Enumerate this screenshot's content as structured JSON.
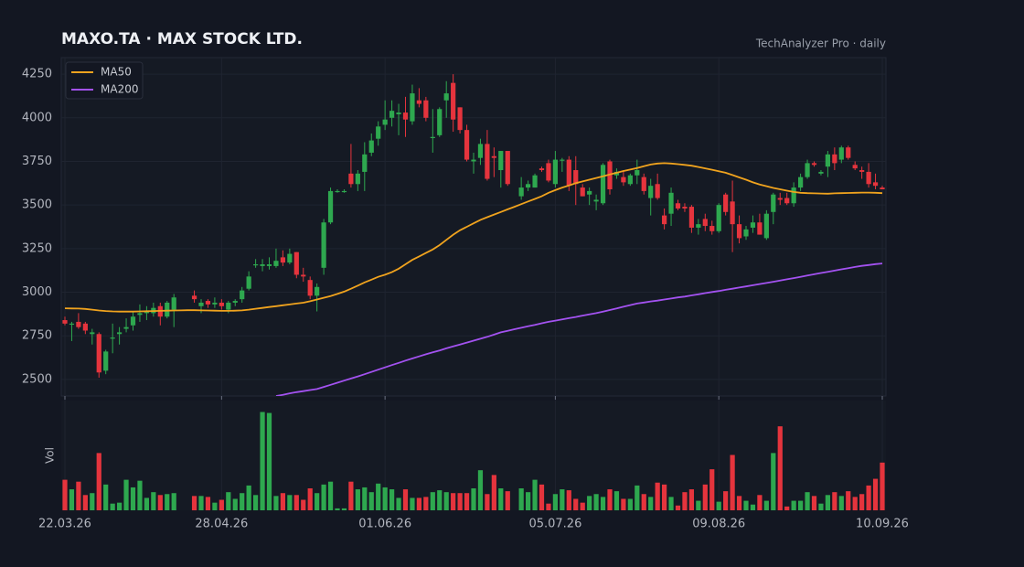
{
  "chart_data": {
    "type": "candlestick",
    "title": "MAXO.TA  ·  MAX STOCK LTD.",
    "source_label": "TechAnalyzer Pro · daily",
    "volume_label": "Vol",
    "categories": [
      "22.03.26",
      null,
      null,
      null,
      null,
      null,
      null,
      null,
      null,
      null,
      null,
      null,
      null,
      null,
      null,
      null,
      null,
      null,
      null,
      null,
      null,
      null,
      null,
      "28.04.26",
      null,
      null,
      null,
      null,
      null,
      null,
      null,
      null,
      null,
      null,
      null,
      null,
      null,
      null,
      null,
      null,
      null,
      null,
      null,
      null,
      null,
      null,
      null,
      "01.06.26",
      null,
      null,
      null,
      null,
      null,
      null,
      null,
      null,
      null,
      null,
      null,
      null,
      null,
      null,
      null,
      null,
      null,
      null,
      null,
      null,
      null,
      null,
      null,
      null,
      "05.07.26",
      null,
      null,
      null,
      null,
      null,
      null,
      null,
      null,
      null,
      null,
      null,
      null,
      null,
      null,
      null,
      null,
      null,
      null,
      null,
      null,
      null,
      null,
      null,
      "09.08.26",
      null,
      null,
      null,
      null,
      null,
      null,
      null,
      null,
      null,
      null,
      null,
      null,
      null,
      null,
      null,
      null,
      null,
      null,
      null,
      null,
      null,
      null,
      null,
      "10.09.26"
    ],
    "open": [
      2840,
      2815,
      2830,
      2820,
      2760,
      2760,
      2550,
      2740,
      2760,
      2790,
      2810,
      2870,
      2880,
      2880,
      2920,
      2860,
      2900,
      null,
      null,
      2980,
      2920,
      2950,
      2930,
      2940,
      2900,
      2940,
      2960,
      3020,
      3160,
      3150,
      3150,
      3150,
      3200,
      3170,
      3230,
      3100,
      3070,
      2980,
      3140,
      3400,
      3580,
      3580,
      3680,
      3620,
      3690,
      3800,
      3880,
      3960,
      4000,
      4020,
      4030,
      3980,
      4100,
      4100,
      3890,
      3900,
      4100,
      4200,
      4060,
      3930,
      3750,
      3770,
      3850,
      3780,
      3700,
      3810,
      null,
      3550,
      3600,
      3600,
      3710,
      3740,
      3620,
      3760,
      3760,
      3700,
      3600,
      3560,
      3520,
      3510,
      3750,
      3670,
      3660,
      3620,
      3670,
      3660,
      3540,
      3620,
      3440,
      3450,
      3510,
      3490,
      3490,
      3370,
      3420,
      3380,
      3350,
      3560,
      3520,
      3390,
      3320,
      3370,
      3400,
      3310,
      3460,
      3540,
      3540,
      3510,
      3600,
      3660,
      3740,
      3680,
      3720,
      3790,
      3760,
      3830,
      3730,
      3700,
      3690,
      3630,
      3600
    ],
    "high": [
      2860,
      2830,
      2880,
      2830,
      2790,
      2770,
      2670,
      2820,
      2800,
      2850,
      2890,
      2930,
      2920,
      2940,
      2940,
      2950,
      2990,
      null,
      null,
      3010,
      2960,
      2960,
      2970,
      2960,
      2950,
      2960,
      3030,
      3120,
      3190,
      3190,
      3200,
      3250,
      3240,
      3250,
      3230,
      3140,
      3090,
      3050,
      3420,
      3600,
      3590,
      3590,
      3850,
      3700,
      3860,
      3910,
      3980,
      4100,
      4100,
      4080,
      4120,
      4190,
      4170,
      4120,
      4050,
      4060,
      4210,
      4250,
      4060,
      3960,
      3800,
      3880,
      3930,
      3830,
      3810,
      3810,
      null,
      3660,
      3640,
      3680,
      3720,
      3760,
      3810,
      3770,
      3780,
      3780,
      3620,
      3600,
      3560,
      3740,
      3760,
      3710,
      3700,
      3680,
      3760,
      3680,
      3650,
      3680,
      3480,
      3600,
      3530,
      3510,
      3500,
      3420,
      3450,
      3410,
      3510,
      3570,
      3640,
      3440,
      3380,
      3440,
      3450,
      3470,
      3570,
      3570,
      3570,
      3630,
      3680,
      3760,
      3750,
      3700,
      3810,
      3830,
      3840,
      3840,
      3750,
      3720,
      3740,
      3680,
      3610
    ],
    "low": [
      2810,
      2720,
      2790,
      2760,
      2700,
      2510,
      2530,
      2650,
      2700,
      2770,
      2780,
      2830,
      2840,
      2860,
      2810,
      2850,
      2800,
      null,
      null,
      2940,
      2880,
      2910,
      2910,
      2900,
      2880,
      2920,
      2940,
      3010,
      3140,
      3120,
      3130,
      3140,
      3150,
      3160,
      3080,
      3060,
      2960,
      2890,
      3100,
      3390,
      3570,
      3570,
      3600,
      3580,
      3580,
      3780,
      3840,
      3930,
      3950,
      3900,
      3890,
      3960,
      4060,
      3980,
      3800,
      3890,
      4000,
      3920,
      3910,
      3750,
      3680,
      3730,
      3640,
      3660,
      3600,
      3610,
      null,
      3530,
      3580,
      3600,
      3690,
      3630,
      3600,
      3690,
      3580,
      3500,
      3550,
      3500,
      3470,
      3500,
      3560,
      3650,
      3610,
      3610,
      3620,
      3560,
      3440,
      3530,
      3360,
      3380,
      3470,
      3460,
      3340,
      3330,
      3350,
      3330,
      3340,
      3440,
      3230,
      3280,
      3300,
      3340,
      3330,
      3300,
      3390,
      3500,
      3500,
      3490,
      3580,
      3650,
      3720,
      3670,
      3660,
      3700,
      3740,
      3760,
      3700,
      3650,
      3600,
      3590,
      3590
    ],
    "close": [
      2820,
      2820,
      2800,
      2780,
      2770,
      2540,
      2660,
      2740,
      2770,
      2800,
      2860,
      2880,
      2890,
      2910,
      2860,
      2940,
      2970,
      null,
      null,
      2960,
      2940,
      2930,
      2940,
      2920,
      2940,
      2950,
      3010,
      3090,
      3160,
      3160,
      3160,
      3180,
      3170,
      3220,
      3100,
      3090,
      2980,
      3030,
      3400,
      3580,
      3580,
      3580,
      3620,
      3680,
      3790,
      3870,
      3950,
      3990,
      4040,
      4030,
      3990,
      4140,
      4080,
      4000,
      3890,
      4050,
      4140,
      3990,
      3930,
      3760,
      3760,
      3850,
      3650,
      3770,
      3810,
      3620,
      null,
      3600,
      3620,
      3670,
      3700,
      3640,
      3760,
      3760,
      3610,
      3620,
      3550,
      3580,
      3530,
      3730,
      3590,
      3690,
      3630,
      3670,
      3700,
      3580,
      3610,
      3540,
      3390,
      3570,
      3480,
      3480,
      3370,
      3390,
      3380,
      3350,
      3500,
      3460,
      3390,
      3310,
      3360,
      3400,
      3330,
      3450,
      3560,
      3530,
      3510,
      3600,
      3660,
      3740,
      3730,
      3690,
      3790,
      3740,
      3830,
      3770,
      3710,
      3690,
      3620,
      3610,
      3590
    ],
    "volume": [
      32,
      22,
      30,
      16,
      18,
      60,
      27,
      7,
      8,
      32,
      24,
      31,
      13,
      19,
      16,
      17,
      18,
      null,
      null,
      15,
      15,
      14,
      8,
      11,
      19,
      12,
      18,
      26,
      16,
      103,
      102,
      15,
      18,
      16,
      16,
      11,
      23,
      18,
      27,
      30,
      2,
      2,
      30,
      22,
      24,
      19,
      28,
      24,
      22,
      13,
      22,
      13,
      13,
      14,
      19,
      21,
      19,
      18,
      18,
      18,
      23,
      42,
      17,
      37,
      23,
      20,
      null,
      23,
      19,
      32,
      27,
      7,
      17,
      22,
      21,
      12,
      8,
      15,
      17,
      14,
      22,
      20,
      12,
      12,
      26,
      17,
      14,
      29,
      27,
      14,
      5,
      19,
      22,
      10,
      27,
      43,
      9,
      20,
      58,
      15,
      10,
      6,
      16,
      10,
      60,
      88,
      4,
      10,
      10,
      19,
      15,
      7,
      16,
      19,
      15,
      20,
      14,
      17,
      26,
      33,
      50
    ],
    "up_color": "#2ea84f",
    "down_color": "#e5343d",
    "series": [
      {
        "name": "MA50",
        "color": "#f0a31e",
        "values": [
          2908,
          2907,
          2906,
          2904,
          2900,
          2895,
          2892,
          2890,
          2889,
          2889,
          2889,
          2890,
          2891,
          2892,
          2893,
          2894,
          2895,
          2896,
          2897,
          2897,
          2896,
          2895,
          2894,
          2893,
          2893,
          2894,
          2896,
          2900,
          2905,
          2910,
          2915,
          2920,
          2925,
          2930,
          2935,
          2940,
          2948,
          2958,
          2968,
          2978,
          2990,
          3003,
          3020,
          3038,
          3056,
          3072,
          3088,
          3100,
          3115,
          3135,
          3160,
          3185,
          3205,
          3225,
          3245,
          3270,
          3300,
          3330,
          3355,
          3375,
          3395,
          3415,
          3430,
          3445,
          3460,
          3475,
          3490,
          3505,
          3520,
          3535,
          3550,
          3570,
          3585,
          3600,
          3612,
          3625,
          3635,
          3645,
          3655,
          3665,
          3675,
          3685,
          3695,
          3703,
          3712,
          3722,
          3732,
          3738,
          3740,
          3738,
          3734,
          3730,
          3725,
          3718,
          3710,
          3702,
          3694,
          3685,
          3672,
          3658,
          3645,
          3630,
          3618,
          3608,
          3598,
          3590,
          3582,
          3575,
          3570,
          3568,
          3567,
          3566,
          3565,
          3567,
          3568,
          3569,
          3570,
          3571,
          3571,
          3570,
          3568
        ]
      },
      {
        "name": "MA200",
        "color": "#a352f0",
        "values": [
          null,
          null,
          null,
          null,
          null,
          null,
          null,
          null,
          null,
          null,
          null,
          null,
          null,
          null,
          null,
          null,
          null,
          null,
          null,
          null,
          null,
          null,
          null,
          null,
          null,
          null,
          null,
          null,
          null,
          null,
          null,
          2405,
          2412,
          2420,
          2427,
          2433,
          2439,
          2445,
          2457,
          2469,
          2481,
          2493,
          2505,
          2517,
          2530,
          2543,
          2556,
          2569,
          2582,
          2595,
          2608,
          2620,
          2632,
          2644,
          2655,
          2666,
          2678,
          2689,
          2700,
          2711,
          2722,
          2733,
          2744,
          2757,
          2770,
          2779,
          2788,
          2796,
          2805,
          2813,
          2822,
          2830,
          2837,
          2844,
          2851,
          2858,
          2866,
          2873,
          2880,
          2889,
          2898,
          2907,
          2917,
          2926,
          2935,
          2941,
          2947,
          2952,
          2958,
          2964,
          2970,
          2975,
          2982,
          2988,
          2995,
          3001,
          3007,
          3014,
          3020,
          3027,
          3033,
          3040,
          3047,
          3053,
          3060,
          3067,
          3074,
          3081,
          3088,
          3096,
          3103,
          3110,
          3117,
          3124,
          3131,
          3138,
          3145,
          3151,
          3156,
          3161,
          3165
        ]
      }
    ],
    "ylim": [
      2405,
      4345
    ],
    "yticks": [
      2500,
      2750,
      3000,
      3250,
      3500,
      3750,
      4000,
      4250
    ],
    "volume_lim": [
      0,
      115
    ],
    "grid": true,
    "legend": "upper left"
  }
}
